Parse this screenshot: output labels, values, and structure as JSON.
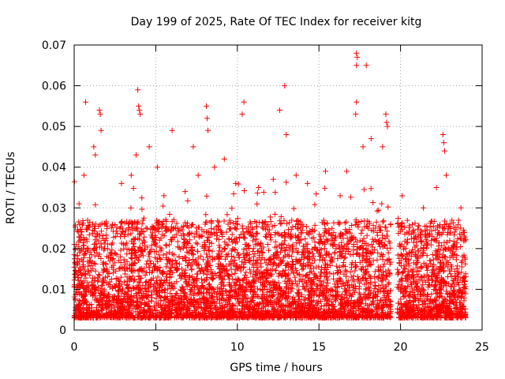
{
  "chart_data": {
    "type": "scatter",
    "title": "Day 199 of 2025, Rate Of TEC Index for receiver kitg",
    "xlabel": "GPS time / hours",
    "ylabel": "ROTI / TECUs",
    "xlim": [
      0,
      25
    ],
    "ylim": [
      0,
      0.07
    ],
    "xticks": [
      0,
      5,
      10,
      15,
      20,
      25
    ],
    "xtick_labels": [
      "0",
      "5",
      "10",
      "15",
      "20",
      "25"
    ],
    "yticks": [
      0,
      0.01,
      0.02,
      0.03,
      0.04,
      0.05,
      0.06,
      0.07
    ],
    "ytick_labels": [
      "0",
      "0.01",
      "0.02",
      "0.03",
      "0.04",
      "0.05",
      "0.06",
      "0.07"
    ],
    "grid": true,
    "marker": "+",
    "color": "#ff0000",
    "data_gap_hours": [
      19.4,
      19.8
    ],
    "series": [
      {
        "name": "ROTI",
        "points": [
          [
            0.7,
            0.056
          ],
          [
            1.55,
            0.054
          ],
          [
            1.6,
            0.053
          ],
          [
            1.65,
            0.049
          ],
          [
            3.9,
            0.059
          ],
          [
            3.95,
            0.055
          ],
          [
            4.0,
            0.054
          ],
          [
            4.05,
            0.053
          ],
          [
            6.0,
            0.049
          ],
          [
            8.1,
            0.055
          ],
          [
            8.15,
            0.052
          ],
          [
            8.2,
            0.049
          ],
          [
            10.4,
            0.056
          ],
          [
            10.3,
            0.053
          ],
          [
            12.6,
            0.054
          ],
          [
            12.9,
            0.06
          ],
          [
            17.3,
            0.068
          ],
          [
            17.35,
            0.067
          ],
          [
            17.3,
            0.065
          ],
          [
            17.9,
            0.065
          ],
          [
            17.3,
            0.056
          ],
          [
            17.25,
            0.053
          ],
          [
            19.1,
            0.053
          ],
          [
            19.15,
            0.051
          ],
          [
            19.2,
            0.05
          ],
          [
            22.6,
            0.048
          ],
          [
            22.65,
            0.046
          ],
          [
            22.7,
            0.044
          ],
          [
            0.3,
            0.031
          ],
          [
            0.6,
            0.038
          ],
          [
            1.2,
            0.045
          ],
          [
            1.3,
            0.043
          ],
          [
            2.9,
            0.036
          ],
          [
            3.5,
            0.038
          ],
          [
            3.8,
            0.043
          ],
          [
            4.6,
            0.045
          ],
          [
            5.1,
            0.04
          ],
          [
            5.5,
            0.033
          ],
          [
            6.8,
            0.034
          ],
          [
            7.3,
            0.045
          ],
          [
            7.6,
            0.038
          ],
          [
            8.6,
            0.04
          ],
          [
            9.2,
            0.042
          ],
          [
            9.9,
            0.036
          ],
          [
            11.3,
            0.035
          ],
          [
            12.2,
            0.037
          ],
          [
            13.0,
            0.048
          ],
          [
            13.6,
            0.038
          ],
          [
            14.3,
            0.036
          ],
          [
            15.4,
            0.039
          ],
          [
            16.3,
            0.033
          ],
          [
            16.7,
            0.039
          ],
          [
            17.7,
            0.045
          ],
          [
            18.2,
            0.047
          ],
          [
            18.9,
            0.045
          ],
          [
            20.1,
            0.033
          ],
          [
            21.4,
            0.03
          ],
          [
            22.2,
            0.035
          ],
          [
            22.8,
            0.038
          ],
          [
            23.7,
            0.03
          ]
        ]
      }
    ]
  }
}
